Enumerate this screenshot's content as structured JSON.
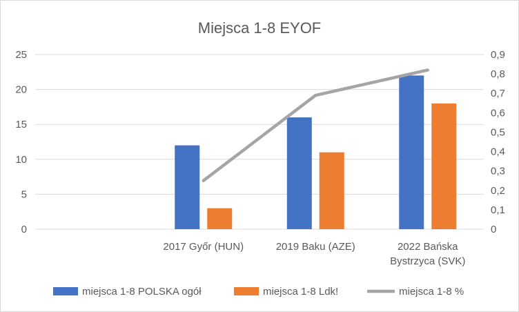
{
  "chart_data": {
    "type": "bar",
    "title": "Miejsca 1-8 EYOF",
    "categories": [
      [
        "",
        ""
      ],
      [
        "2017 Győr (HUN)",
        ""
      ],
      [
        "2019 Baku (AZE)",
        ""
      ],
      [
        "2022 Bańska",
        "Bystrzyca (SVK)"
      ]
    ],
    "series": [
      {
        "name": "miejsca 1-8 POLSKA ogół",
        "type": "bar",
        "axis": "left",
        "color": "#4472c4",
        "values": [
          null,
          12,
          16,
          22
        ]
      },
      {
        "name": "miejsca 1-8 Ldk!",
        "type": "bar",
        "axis": "left",
        "color": "#ed7d31",
        "values": [
          null,
          3,
          11,
          18
        ]
      },
      {
        "name": "miejsca 1-8 %",
        "type": "line",
        "axis": "right",
        "color": "#a5a5a5",
        "values": [
          null,
          0.25,
          0.69,
          0.82
        ]
      }
    ],
    "y_left": {
      "min": 0,
      "max": 25,
      "ticks": [
        "0",
        "5",
        "10",
        "15",
        "20",
        "25"
      ]
    },
    "y_right": {
      "min": 0,
      "max": 0.9,
      "ticks": [
        "0",
        "0,1",
        "0,2",
        "0,3",
        "0,4",
        "0,5",
        "0,6",
        "0,7",
        "0,8",
        "0,9"
      ]
    },
    "grid": true,
    "legend": "bottom"
  }
}
